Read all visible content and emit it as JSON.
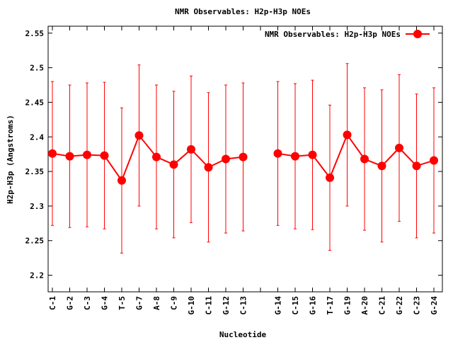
{
  "chart_data": {
    "type": "line",
    "title": "NMR Observables: H2p-H3p NOEs",
    "x_label": "Nucleotide",
    "y_label": "H2p-H3p (Angstroms)",
    "categories": [
      "C-1",
      "G-2",
      "C-3",
      "G-4",
      "T-5",
      "G-7",
      "A-8",
      "C-9",
      "G-10",
      "C-11",
      "G-12",
      "C-13",
      null,
      "G-14",
      "C-15",
      "G-16",
      "T-17",
      "G-19",
      "A-20",
      "C-21",
      "G-22",
      "C-23",
      "G-24"
    ],
    "series": [
      {
        "name": "NMR Observables: H2p-H3p NOEs",
        "color": "#ff0000",
        "values": [
          2.376,
          2.372,
          2.374,
          2.373,
          2.337,
          2.402,
          2.371,
          2.36,
          2.382,
          2.356,
          2.368,
          2.371,
          null,
          2.376,
          2.372,
          2.374,
          2.341,
          2.403,
          2.368,
          2.358,
          2.384,
          2.358,
          2.366
        ],
        "errors": [
          0.104,
          0.103,
          0.104,
          0.106,
          0.105,
          0.102,
          0.104,
          0.106,
          0.106,
          0.108,
          0.107,
          0.107,
          null,
          0.104,
          0.105,
          0.108,
          0.105,
          0.103,
          0.103,
          0.11,
          0.106,
          0.104,
          0.105
        ]
      }
    ],
    "ylim": [
      2.176,
      2.56
    ],
    "yticks": [
      2.2,
      2.25,
      2.3,
      2.35,
      2.4,
      2.45,
      2.5,
      2.55
    ],
    "legend": "top-right"
  }
}
